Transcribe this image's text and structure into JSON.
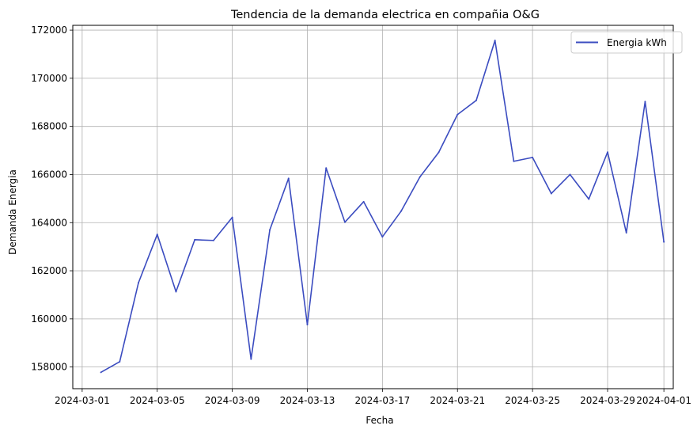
{
  "chart_data": {
    "type": "line",
    "title": "Tendencia de la demanda electrica en compañia O&G",
    "xlabel": "Fecha",
    "ylabel": "Demanda Energia",
    "grid": true,
    "legend_position": "top-right",
    "x_type": "date",
    "xlim": [
      "2024-02-29T12:00",
      "2024-04-01T12:00"
    ],
    "ylim": [
      157100,
      172200
    ],
    "x_ticks": [
      "2024-03-01",
      "2024-03-05",
      "2024-03-09",
      "2024-03-13",
      "2024-03-17",
      "2024-03-21",
      "2024-03-25",
      "2024-03-29",
      "2024-04-01"
    ],
    "y_ticks": [
      158000,
      160000,
      162000,
      164000,
      166000,
      168000,
      170000,
      172000
    ],
    "x": [
      "2024-03-02",
      "2024-03-03",
      "2024-03-04",
      "2024-03-05",
      "2024-03-06",
      "2024-03-07",
      "2024-03-08",
      "2024-03-09",
      "2024-03-10",
      "2024-03-11",
      "2024-03-12",
      "2024-03-13",
      "2024-03-14",
      "2024-03-15",
      "2024-03-16",
      "2024-03-17",
      "2024-03-18",
      "2024-03-19",
      "2024-03-20",
      "2024-03-21",
      "2024-03-22",
      "2024-03-23",
      "2024-03-24",
      "2024-03-25",
      "2024-03-26",
      "2024-03-27",
      "2024-03-28",
      "2024-03-29",
      "2024-03-30",
      "2024-03-31",
      "2024-04-01"
    ],
    "series": [
      {
        "name": "Energia kWh",
        "color": "#3b4cc0",
        "values": [
          157780,
          158220,
          161500,
          163510,
          161130,
          163290,
          163260,
          164220,
          158330,
          163700,
          165840,
          159760,
          166270,
          164020,
          164870,
          163410,
          164480,
          165900,
          166920,
          168490,
          169080,
          171570,
          166550,
          166710,
          165210,
          166000,
          164980,
          166930,
          163580,
          169030,
          163200
        ]
      }
    ]
  }
}
